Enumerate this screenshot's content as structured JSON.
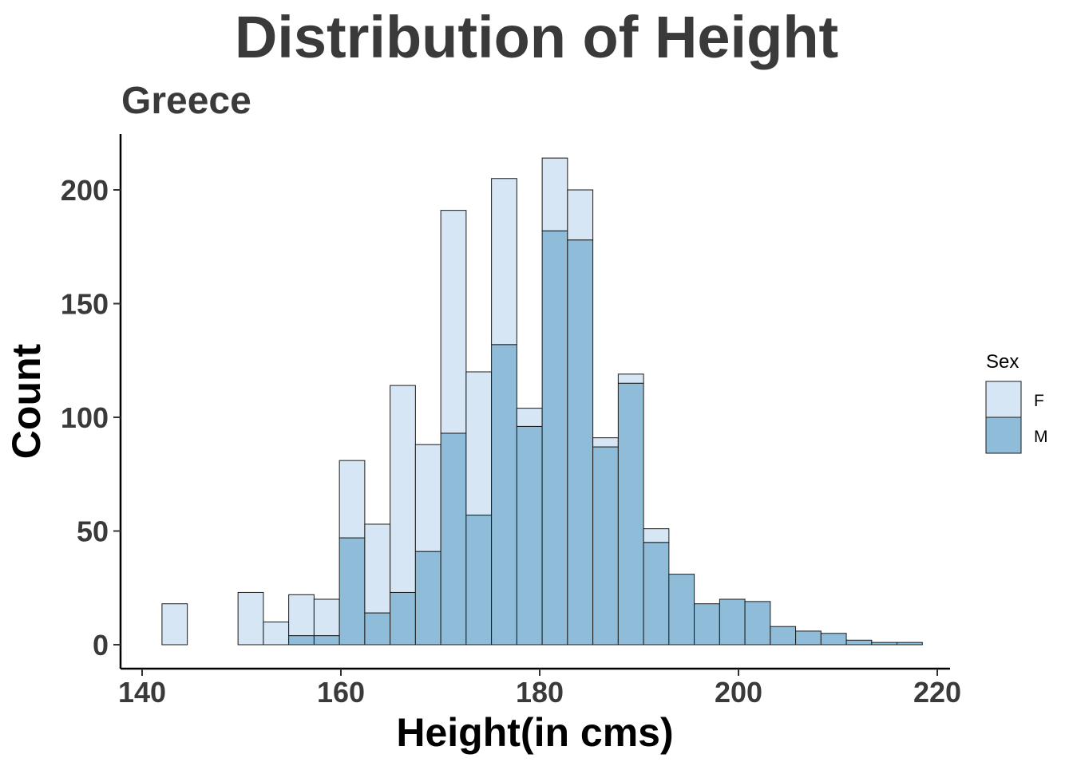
{
  "chart_data": {
    "type": "bar",
    "subtype": "stacked-histogram",
    "title": "Distribution of Height",
    "subtitle": "Greece",
    "xlabel": "Height(in cms)",
    "ylabel": "Count",
    "xlim": [
      140,
      220
    ],
    "ylim": [
      0,
      220
    ],
    "x_ticks": [
      140,
      160,
      180,
      200,
      220
    ],
    "y_ticks": [
      0,
      50,
      100,
      150,
      200
    ],
    "grid": false,
    "legend": {
      "title": "Sex",
      "placement": "right"
    },
    "bin_edges": [
      142,
      144.55,
      147.1,
      149.65,
      152.2,
      154.75,
      157.3,
      159.85,
      162.4,
      164.95,
      167.5,
      170.05,
      172.6,
      175.15,
      177.7,
      180.25,
      182.8,
      185.35,
      187.9,
      190.45,
      193.0,
      195.55,
      198.1,
      200.65,
      203.2,
      205.75,
      208.3,
      210.85,
      213.4,
      215.95,
      218.5
    ],
    "series": [
      {
        "name": "M",
        "color": "#8fbdd9",
        "values": [
          0,
          0,
          0,
          0,
          0,
          4,
          4,
          47,
          14,
          23,
          41,
          93,
          57,
          132,
          96,
          182,
          178,
          87,
          115,
          45,
          31,
          18,
          20,
          19,
          8,
          6,
          5,
          2,
          1,
          1
        ]
      },
      {
        "name": "F",
        "color": "#d6e6f4",
        "values": [
          18,
          0,
          0,
          23,
          10,
          18,
          16,
          34,
          39,
          91,
          47,
          98,
          63,
          73,
          8,
          32,
          22,
          4,
          4,
          6,
          0,
          0,
          0,
          0,
          0,
          0,
          0,
          0,
          0,
          0
        ]
      }
    ]
  }
}
